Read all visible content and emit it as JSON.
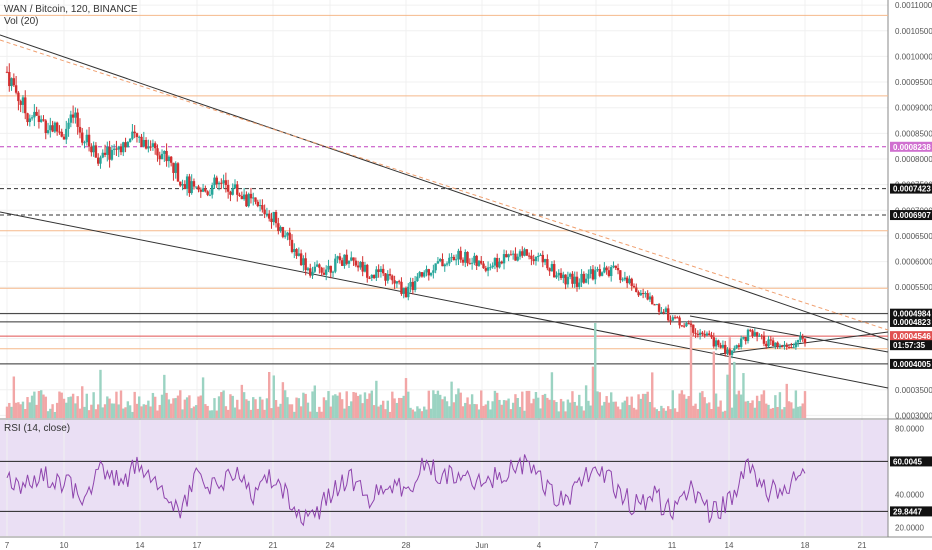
{
  "header": {
    "symbol_title": "WAN / Bitcoin, 120, BINANCE",
    "volume_label": "Vol (20)",
    "rsi_label": "RSI (14, close)"
  },
  "colors": {
    "up": "#26a69a",
    "down": "#d32f2f",
    "up_volume": "#9bd3c2",
    "down_volume": "#f2a6a6",
    "rsi_line": "#8e44ad",
    "rsi_bg": "#eadff4",
    "orange_line": "#f5b98b",
    "magenta_line": "#c040c0",
    "trend_line": "#333333"
  },
  "chart_data": {
    "type": "candlestick",
    "price_axis": {
      "min": 0.0003,
      "max": 0.0011,
      "ticks": [
        "0.0011000",
        "0.0010500",
        "0.0010000",
        "0.0009500",
        "0.0009000",
        "0.0008500",
        "0.0008000",
        "0.0007500",
        "0.0007000",
        "0.0006500",
        "0.0006000",
        "0.0005500",
        "0.0005000",
        "0.0004500",
        "0.0004000",
        "0.0003500",
        "0.0003000"
      ],
      "tick_values": [
        0.0011,
        0.00105,
        0.001,
        0.00095,
        0.0009,
        0.00085,
        0.0008,
        0.00075,
        0.0007,
        0.00065,
        0.0006,
        0.00055,
        0.0005,
        0.00045,
        0.0004,
        0.00035,
        0.0003
      ]
    },
    "x_axis": {
      "labels": [
        "7",
        "10",
        "14",
        "17",
        "21",
        "24",
        "28",
        "Jun",
        "4",
        "7",
        "11",
        "14",
        "18",
        "21"
      ],
      "day_index": [
        0,
        3,
        7,
        10,
        14,
        17,
        21,
        25,
        28,
        31,
        35,
        38,
        42,
        45
      ]
    },
    "horizontal_levels": [
      {
        "label": "0.0007423",
        "value": 0.0007423,
        "style": "dashed-dark"
      },
      {
        "label": "0.0006907",
        "value": 0.0006907,
        "style": "dashed-dark"
      },
      {
        "label": "0.0004984",
        "value": 0.0004984,
        "style": "solid-dark"
      },
      {
        "label": "0.0004823",
        "value": 0.0004823,
        "style": "solid-dark"
      },
      {
        "label": "0.0004546",
        "value": 0.0004546,
        "style": "solid-red"
      },
      {
        "label": "0.0004005",
        "value": 0.0004005,
        "style": "solid-dark"
      },
      {
        "label": "0.0008238",
        "value": 0.0008238,
        "style": "dashed-magenta"
      }
    ],
    "orange_levels": [
      0.00108,
      0.000923,
      0.00066,
      0.000548,
      0.00043
    ],
    "current_price": {
      "label": "01:57:35",
      "value": 0.000437
    },
    "price_path": [
      [
        0,
        0.00097
      ],
      [
        1,
        0.00089
      ],
      [
        2,
        0.00087
      ],
      [
        3,
        0.00085
      ],
      [
        3.5,
        0.00088
      ],
      [
        4,
        0.00084
      ],
      [
        5,
        0.0008
      ],
      [
        6,
        0.00083
      ],
      [
        7,
        0.00084
      ],
      [
        8,
        0.00082
      ],
      [
        9,
        0.00077
      ],
      [
        10,
        0.00073
      ],
      [
        11,
        0.00075
      ],
      [
        12,
        0.00074
      ],
      [
        13,
        0.00071
      ],
      [
        14,
        0.00069
      ],
      [
        15,
        0.00063
      ],
      [
        16,
        0.00058
      ],
      [
        17,
        0.00059
      ],
      [
        18,
        0.00061
      ],
      [
        19,
        0.00058
      ],
      [
        20,
        0.00057
      ],
      [
        21,
        0.00054
      ],
      [
        22,
        0.00058
      ],
      [
        23,
        0.0006
      ],
      [
        24,
        0.00061
      ],
      [
        25,
        0.00059
      ],
      [
        26,
        0.0006
      ],
      [
        27,
        0.00062
      ],
      [
        28,
        0.00061
      ],
      [
        29,
        0.00057
      ],
      [
        30,
        0.00056
      ],
      [
        31,
        0.00058
      ],
      [
        32,
        0.00058
      ],
      [
        33,
        0.00055
      ],
      [
        34,
        0.00052
      ],
      [
        35,
        0.00049
      ],
      [
        36,
        0.00047
      ],
      [
        37,
        0.00045
      ],
      [
        38,
        0.00042
      ],
      [
        39,
        0.00046
      ],
      [
        40,
        0.00044
      ],
      [
        41,
        0.00043
      ],
      [
        42,
        0.00045
      ]
    ],
    "volume_spikes": [
      [
        36,
        1.0
      ],
      [
        38,
        0.85
      ],
      [
        31,
        1.0
      ],
      [
        37.2,
        0.7
      ]
    ],
    "rsi_axis": {
      "min": 15,
      "max": 85,
      "ticks": [
        "80.0000",
        "60.0045",
        "40.0000",
        "29.8447",
        "20.0000"
      ],
      "tick_values": [
        80,
        60.0045,
        40,
        29.8447,
        20
      ]
    },
    "rsi_levels": [
      {
        "label": "60.0045",
        "value": 60.0045
      },
      {
        "label": "29.8447",
        "value": 29.8447
      }
    ],
    "rsi_path": [
      [
        0,
        50
      ],
      [
        1,
        45
      ],
      [
        2,
        52
      ],
      [
        3,
        47
      ],
      [
        4,
        40
      ],
      [
        5,
        55
      ],
      [
        6,
        48
      ],
      [
        7,
        58
      ],
      [
        8,
        45
      ],
      [
        9,
        30
      ],
      [
        10,
        50
      ],
      [
        11,
        44
      ],
      [
        12,
        55
      ],
      [
        13,
        38
      ],
      [
        14,
        52
      ],
      [
        15,
        33
      ],
      [
        16,
        24
      ],
      [
        17,
        40
      ],
      [
        18,
        50
      ],
      [
        19,
        38
      ],
      [
        20,
        48
      ],
      [
        21,
        42
      ],
      [
        22,
        58
      ],
      [
        23,
        52
      ],
      [
        24,
        55
      ],
      [
        25,
        45
      ],
      [
        26,
        52
      ],
      [
        27,
        60
      ],
      [
        28,
        50
      ],
      [
        29,
        38
      ],
      [
        30,
        42
      ],
      [
        31,
        60
      ],
      [
        32,
        45
      ],
      [
        33,
        33
      ],
      [
        34,
        40
      ],
      [
        35,
        28
      ],
      [
        36,
        45
      ],
      [
        37,
        28
      ],
      [
        38,
        35
      ],
      [
        39,
        60
      ],
      [
        40,
        42
      ],
      [
        41,
        43
      ],
      [
        42,
        55
      ]
    ]
  }
}
